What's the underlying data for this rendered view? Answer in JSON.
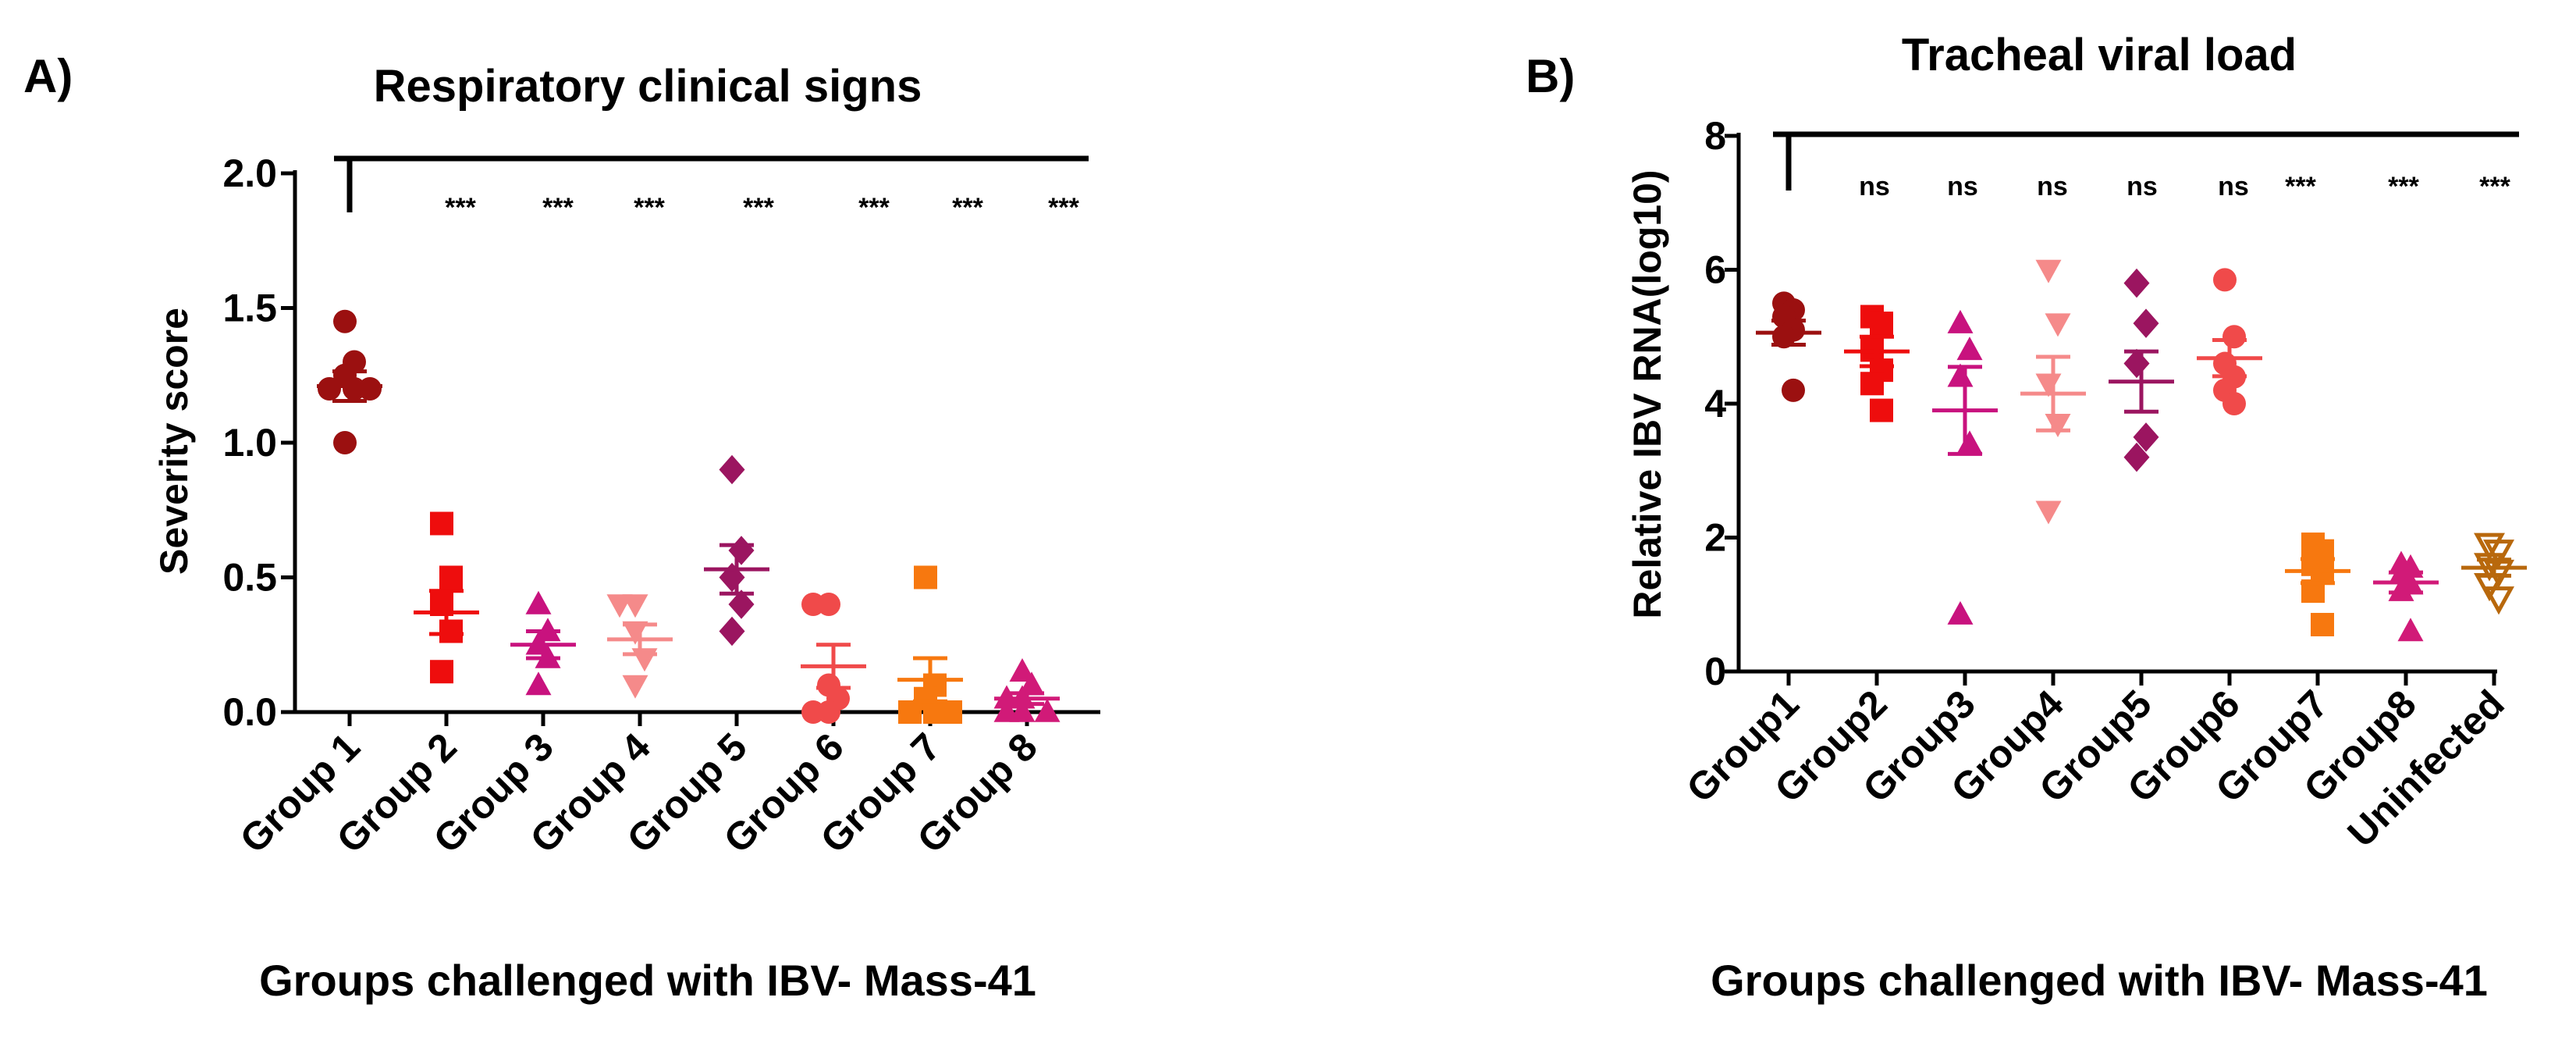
{
  "chart_data": [
    {
      "panel_label": "A)",
      "type": "scatter",
      "title": "Respiratory clinical signs",
      "xlabel": "Groups challenged with IBV- Mass-41",
      "ylabel": "Severity score",
      "ylim": [
        0,
        2.0
      ],
      "yticks": [
        0.0,
        0.5,
        1.0,
        1.5,
        2.0
      ],
      "ytick_labels": [
        "0.0",
        "0.5",
        "1.0",
        "1.5",
        "2.0"
      ],
      "categories": [
        "Group 1",
        "Group 2",
        "Group 3",
        "Group 4",
        "Group 5",
        "Group 6",
        "Group 7",
        "Group 8"
      ],
      "comparison_reference": "Group 1",
      "significance": [
        "",
        "***",
        "***",
        "***",
        "***",
        "***",
        "***",
        "***"
      ],
      "series": [
        {
          "name": "Group 1",
          "color": "#9b1010",
          "marker": "circle",
          "values": [
            1.45,
            1.3,
            1.25,
            1.2,
            1.2,
            1.2,
            1.0
          ],
          "mean": 1.21,
          "sem": 0.055
        },
        {
          "name": "Group 2",
          "color": "#ee0d0d",
          "marker": "square",
          "values": [
            0.7,
            0.5,
            0.4,
            0.3,
            0.15
          ],
          "mean": 0.37,
          "sem": 0.08
        },
        {
          "name": "Group 3",
          "color": "#c8127e",
          "marker": "triangle",
          "values": [
            0.4,
            0.3,
            0.25,
            0.2,
            0.1
          ],
          "mean": 0.25,
          "sem": 0.05
        },
        {
          "name": "Group 4",
          "color": "#f58a8a",
          "marker": "triangle-down",
          "values": [
            0.4,
            0.4,
            0.3,
            0.2,
            0.1
          ],
          "mean": 0.27,
          "sem": 0.055
        },
        {
          "name": "Group 5",
          "color": "#9b1560",
          "marker": "diamond",
          "values": [
            0.9,
            0.6,
            0.5,
            0.4,
            0.3
          ],
          "mean": 0.53,
          "sem": 0.09
        },
        {
          "name": "Group 6",
          "color": "#f04a4a",
          "marker": "circle",
          "values": [
            0.4,
            0.4,
            0.1,
            0.05,
            0.0,
            0.0
          ],
          "mean": 0.17,
          "sem": 0.08
        },
        {
          "name": "Group 7",
          "color": "#f7780f",
          "marker": "square",
          "values": [
            0.5,
            0.1,
            0.05,
            0.0,
            0.0,
            0.0
          ],
          "mean": 0.12,
          "sem": 0.08
        },
        {
          "name": "Group 8",
          "color": "#d11a78",
          "marker": "triangle",
          "values": [
            0.15,
            0.1,
            0.05,
            0.05,
            0.0,
            0.0,
            0.0
          ],
          "mean": 0.05,
          "sem": 0.02
        }
      ]
    },
    {
      "panel_label": "B)",
      "type": "scatter",
      "title": "Tracheal viral load",
      "xlabel": "Groups challenged with IBV- Mass-41",
      "ylabel": "Relative IBV RNA(log10)",
      "ylim": [
        0,
        8
      ],
      "yticks": [
        0,
        2,
        4,
        6,
        8
      ],
      "ytick_labels": [
        "0",
        "2",
        "4",
        "6",
        "8"
      ],
      "categories": [
        "Group1",
        "Group2",
        "Group3",
        "Group4",
        "Group5",
        "Group6",
        "Group7",
        "Group8",
        "Uninfected"
      ],
      "comparison_reference": "Group1",
      "significance": [
        "",
        "ns",
        "ns",
        "ns",
        "ns",
        "ns",
        "***",
        "***",
        "***"
      ],
      "series": [
        {
          "name": "Group1",
          "color": "#9b1010",
          "marker": "circle",
          "values": [
            5.5,
            5.4,
            5.3,
            5.1,
            5.0,
            4.2
          ],
          "mean": 5.06,
          "sem": 0.18
        },
        {
          "name": "Group2",
          "color": "#ee0d0d",
          "marker": "square",
          "values": [
            5.3,
            5.2,
            4.8,
            4.5,
            4.3,
            3.9
          ],
          "mean": 4.78,
          "sem": 0.22
        },
        {
          "name": "Group3",
          "color": "#c8127e",
          "marker": "triangle",
          "values": [
            5.2,
            4.8,
            4.4,
            3.4,
            0.85
          ],
          "mean": 3.9,
          "sem": 0.65
        },
        {
          "name": "Group4",
          "color": "#f58a8a",
          "marker": "triangle-down",
          "values": [
            6.0,
            5.2,
            4.3,
            3.7,
            2.4
          ],
          "mean": 4.15,
          "sem": 0.55
        },
        {
          "name": "Group5",
          "color": "#9b1560",
          "marker": "diamond",
          "values": [
            5.8,
            5.2,
            4.6,
            3.5,
            3.2
          ],
          "mean": 4.33,
          "sem": 0.45
        },
        {
          "name": "Group6",
          "color": "#f04a4a",
          "marker": "circle",
          "values": [
            5.85,
            5.0,
            4.6,
            4.4,
            4.2,
            4.0
          ],
          "mean": 4.68,
          "sem": 0.27
        },
        {
          "name": "Group7",
          "color": "#f7780f",
          "marker": "square",
          "values": [
            1.9,
            1.8,
            1.6,
            1.5,
            1.2,
            0.7
          ],
          "mean": 1.5,
          "sem": 0.18
        },
        {
          "name": "Group8",
          "color": "#d11a78",
          "marker": "triangle",
          "values": [
            1.6,
            1.55,
            1.45,
            1.3,
            1.2,
            0.6
          ],
          "mean": 1.33,
          "sem": 0.15
        },
        {
          "name": "Uninfected",
          "color": "#b8680c",
          "marker": "triangle-down-open",
          "values": [
            1.9,
            1.8,
            1.6,
            1.5,
            1.3,
            1.1
          ],
          "mean": 1.55,
          "sem": 0.12
        }
      ]
    }
  ]
}
